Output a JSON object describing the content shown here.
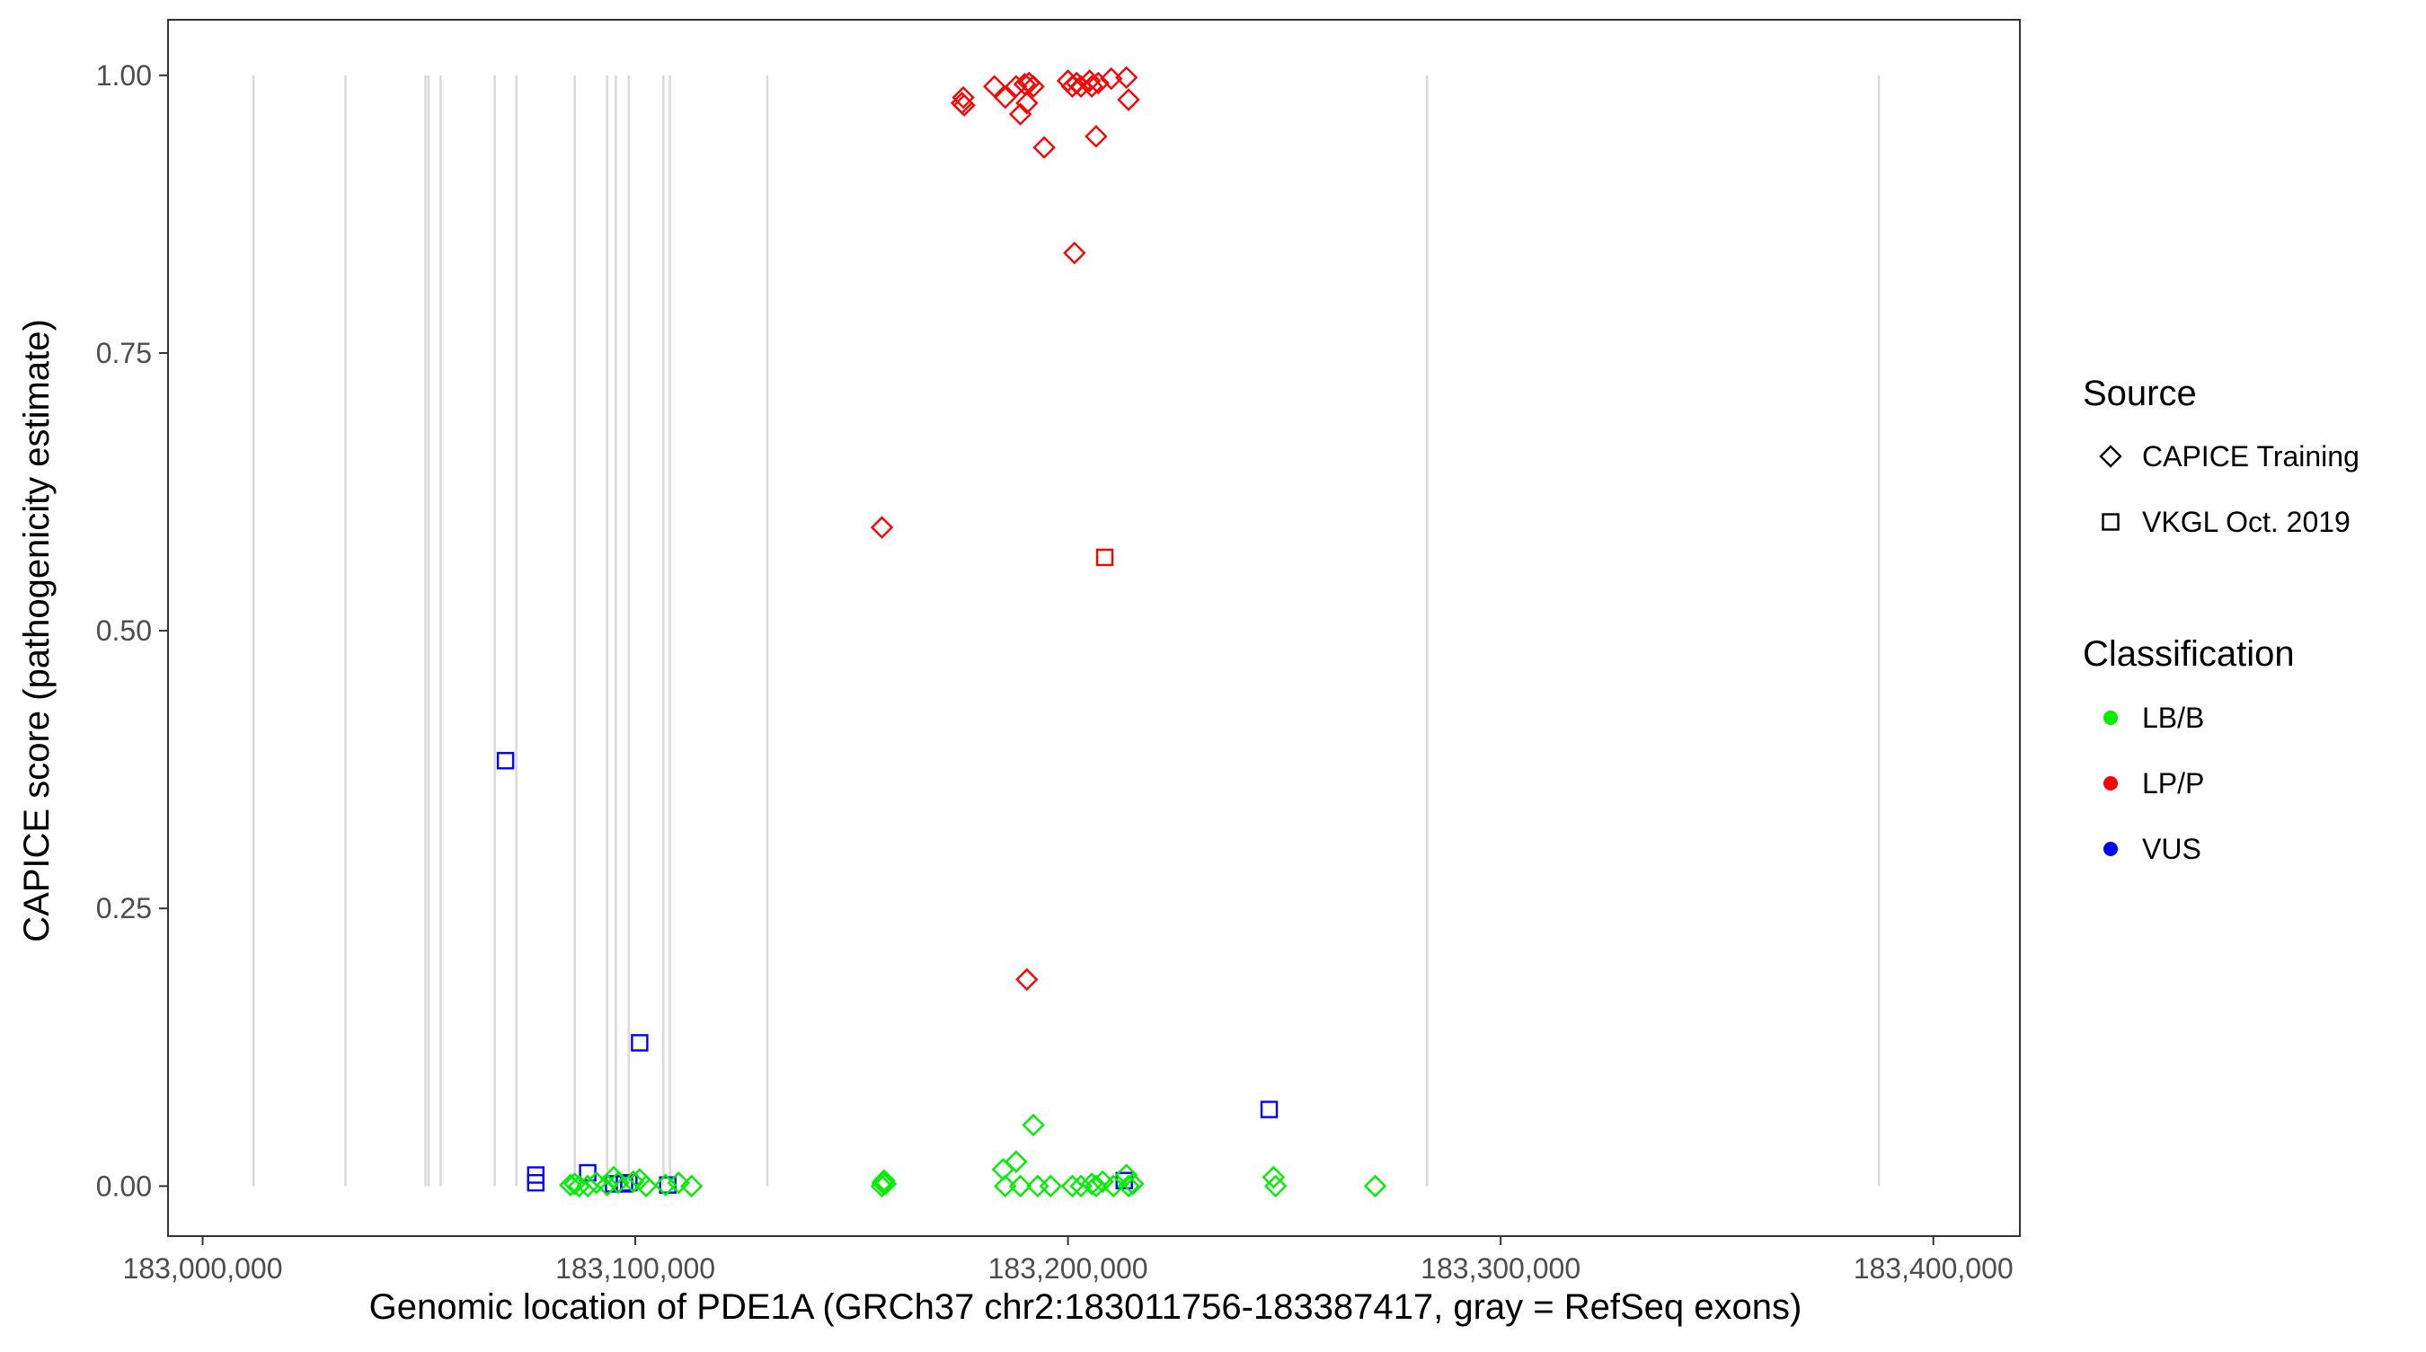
{
  "chart_data": {
    "type": "scatter",
    "title": "",
    "xlabel": "Genomic location of PDE1A (GRCh37 chr2:183011756-183387417, gray = RefSeq exons)",
    "ylabel": "CAPICE score (pathogenicity estimate)",
    "xlim": [
      182992000,
      183420000
    ],
    "ylim": [
      -0.045,
      1.05
    ],
    "x_ticks": [
      183000000,
      183100000,
      183200000,
      183300000,
      183400000
    ],
    "x_tick_labels": [
      "183,000,000",
      "183,100,000",
      "183,200,000",
      "183,300,000",
      "183,400,000"
    ],
    "y_ticks": [
      0,
      0.25,
      0.5,
      0.75,
      1.0
    ],
    "y_tick_labels": [
      "0.00",
      "0.25",
      "0.50",
      "0.75",
      "1.00"
    ],
    "grid": false,
    "exon_positions": [
      183011756,
      183033000,
      183051500,
      183052200,
      183055000,
      183067500,
      183072500,
      183086000,
      183093500,
      183095500,
      183098500,
      183106500,
      183108000,
      183130500,
      183283000,
      183387417
    ],
    "colors": {
      "LB/B": "#00ee00",
      "LP/P": "#ff0000",
      "VUS": "#0000ff",
      "exon": "#d9d9d9"
    },
    "legend": {
      "placement": "right",
      "source_title": "Source",
      "source_items": [
        {
          "label": "CAPICE Training",
          "shape": "diamond"
        },
        {
          "label": "VKGL Oct. 2019",
          "shape": "square"
        }
      ],
      "class_title": "Classification",
      "class_items": [
        {
          "label": "LB/B",
          "color": "#00ee00"
        },
        {
          "label": "LP/P",
          "color": "#ff0000"
        },
        {
          "label": "VUS",
          "color": "#0000ff"
        }
      ]
    },
    "series": [
      {
        "name": "LP/P",
        "source": "CAPICE Training",
        "shape": "diamond",
        "color": "#ff0000",
        "points": [
          [
            183175500,
            0.975
          ],
          [
            183175800,
            0.98
          ],
          [
            183176000,
            0.973
          ],
          [
            183183000,
            0.99
          ],
          [
            183185500,
            0.98
          ],
          [
            183188000,
            0.99
          ],
          [
            183189000,
            0.965
          ],
          [
            183190000,
            0.992
          ],
          [
            183190500,
            0.975
          ],
          [
            183191000,
            0.993
          ],
          [
            183192000,
            0.99
          ],
          [
            183194500,
            0.935
          ],
          [
            183200000,
            0.995
          ],
          [
            183201000,
            0.99
          ],
          [
            183202000,
            0.993
          ],
          [
            183203000,
            0.99
          ],
          [
            183205000,
            0.995
          ],
          [
            183205500,
            0.99
          ],
          [
            183206500,
            0.945
          ],
          [
            183207000,
            0.993
          ],
          [
            183210000,
            0.997
          ],
          [
            183213500,
            0.998
          ],
          [
            183214000,
            0.978
          ],
          [
            183201500,
            0.84
          ],
          [
            183157000,
            0.593
          ],
          [
            183190500,
            0.186
          ]
        ]
      },
      {
        "name": "LP/P",
        "source": "VKGL Oct. 2019",
        "shape": "square",
        "color": "#ff0000",
        "points": [
          [
            183208500,
            0.566
          ]
        ]
      },
      {
        "name": "VUS",
        "source": "VKGL Oct. 2019",
        "shape": "square",
        "color": "#0000ff",
        "points": [
          [
            183070000,
            0.383
          ],
          [
            183077000,
            0.01
          ],
          [
            183077000,
            0.003
          ],
          [
            183089000,
            0.012
          ],
          [
            183095000,
            0.002
          ],
          [
            183097500,
            0.002
          ],
          [
            183098500,
            0.003
          ],
          [
            183101000,
            0.129
          ],
          [
            183107500,
            0.001
          ],
          [
            183213000,
            0.005
          ],
          [
            183246500,
            0.069
          ]
        ]
      },
      {
        "name": "LB/B",
        "source": "CAPICE Training",
        "shape": "diamond",
        "color": "#00ee00",
        "points": [
          [
            183085000,
            0.001
          ],
          [
            183086000,
            0.002
          ],
          [
            183087000,
            0.0
          ],
          [
            183089000,
            0.0
          ],
          [
            183091000,
            0.003
          ],
          [
            183093500,
            0.001
          ],
          [
            183095000,
            0.008
          ],
          [
            183096000,
            0.003
          ],
          [
            183099500,
            0.004
          ],
          [
            183101000,
            0.006
          ],
          [
            183102500,
            0.0
          ],
          [
            183107000,
            0.001
          ],
          [
            183110000,
            0.003
          ],
          [
            183113000,
            0.0
          ],
          [
            183157000,
            0.0
          ],
          [
            183157200,
            0.003
          ],
          [
            183157500,
            0.005
          ],
          [
            183157800,
            0.002
          ],
          [
            183185000,
            0.015
          ],
          [
            183185500,
            0.0
          ],
          [
            183188000,
            0.022
          ],
          [
            183189000,
            0.0
          ],
          [
            183192000,
            0.055
          ],
          [
            183193000,
            0.0
          ],
          [
            183196000,
            0.0
          ],
          [
            183201000,
            0.0
          ],
          [
            183203000,
            0.0
          ],
          [
            183205500,
            0.002
          ],
          [
            183206500,
            0.0
          ],
          [
            183208000,
            0.004
          ],
          [
            183210500,
            0.0
          ],
          [
            183213500,
            0.01
          ],
          [
            183214000,
            0.0
          ],
          [
            183215000,
            0.002
          ],
          [
            183247500,
            0.008
          ],
          [
            183248000,
            0.0
          ],
          [
            183271000,
            0.0
          ]
        ]
      }
    ]
  }
}
